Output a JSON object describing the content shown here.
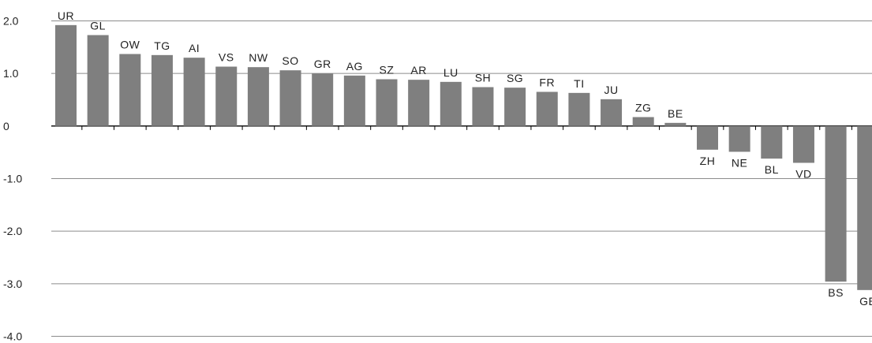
{
  "chart_data": {
    "type": "bar",
    "categories": [
      "UR",
      "GL",
      "OW",
      "TG",
      "AI",
      "VS",
      "NW",
      "SO",
      "GR",
      "AG",
      "SZ",
      "AR",
      "LU",
      "SH",
      "SG",
      "FR",
      "TI",
      "JU",
      "ZG",
      "BE",
      "ZH",
      "NE",
      "BL",
      "VD",
      "BS",
      "GE"
    ],
    "values": [
      1.92,
      1.73,
      1.37,
      1.35,
      1.3,
      1.13,
      1.12,
      1.06,
      1.0,
      0.96,
      0.89,
      0.88,
      0.84,
      0.74,
      0.73,
      0.65,
      0.63,
      0.51,
      0.17,
      0.06,
      -0.45,
      -0.49,
      -0.62,
      -0.7,
      -2.96,
      -3.12
    ],
    "y_ticks": [
      "2.0",
      "1.0",
      "0",
      "-1.0",
      "-2.0",
      "-3.0",
      "-4.0"
    ],
    "y_tick_values": [
      2,
      1,
      0,
      -1,
      -2,
      -3,
      -4
    ],
    "ylim": [
      -4,
      2
    ],
    "grid": true,
    "bar_color": "#7f7f7f",
    "grid_color": "#8c8c8c"
  }
}
